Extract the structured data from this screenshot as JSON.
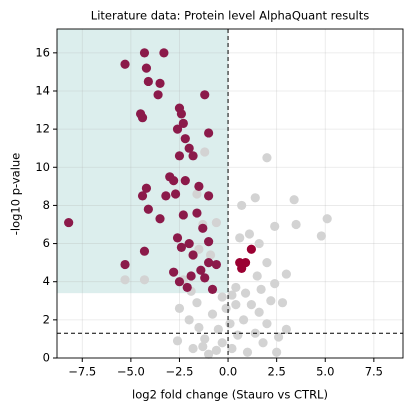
{
  "chart_data": {
    "type": "scatter",
    "title": "Literature data: Protein level AlphaQuant results",
    "x_label": "log2 fold change (Stauro vs CTRL)",
    "y_label": "-log10 p-value",
    "xlim": [
      -8.8,
      9.0
    ],
    "ylim": [
      0,
      17.25
    ],
    "xticks": [
      {
        "value": -7.5,
        "label": "−7.5"
      },
      {
        "value": -5,
        "label": "−5.0"
      },
      {
        "value": -2.5,
        "label": "−2.5"
      },
      {
        "value": 0,
        "label": "0.0"
      },
      2.5,
      {
        "value": 5,
        "label": "5.0"
      },
      7.5
    ],
    "yticks": [
      0,
      2,
      4,
      6,
      8,
      10,
      12,
      14,
      16
    ],
    "grid": true,
    "highlight_region": {
      "color": "#dceeed",
      "x": [
        -8.8,
        0
      ],
      "y": [
        3.4,
        17.25
      ]
    },
    "vlines": [
      0
    ],
    "hlines": [
      1.3
    ],
    "series": [
      {
        "color": "#d3d3d3",
        "x": [
          2.0,
          1.4,
          0.7,
          3.4,
          5.1,
          3.5,
          2.4,
          4.8,
          1.6,
          0.6,
          1.1,
          2.0,
          1.5,
          3.0,
          2.4,
          0.4,
          -5.3,
          -4.3,
          -1.2,
          -1.6,
          -1.3,
          -0.6,
          -1.5,
          -0.9,
          -2.3,
          -1.6,
          -2.5,
          -2.0,
          -1.5,
          -1.2,
          -0.8,
          -0.5,
          -0.3,
          -1.8,
          -1.0,
          0.2,
          0.5,
          0.8,
          1.2,
          1.6,
          2.0,
          1.8,
          2.2,
          2.8,
          3.0,
          1.0,
          0.4,
          0.2,
          -0.3,
          -0.6,
          1.4,
          0.9,
          -2.6,
          2.5,
          -1.9,
          0.1,
          -0.1,
          1.7,
          2.6,
          -1.3
        ],
        "values": [
          10.5,
          8.4,
          8.0,
          8.3,
          7.3,
          7.0,
          6.9,
          6.4,
          6.0,
          6.3,
          6.5,
          5.0,
          4.3,
          4.4,
          3.9,
          3.7,
          4.1,
          4.1,
          10.8,
          8.6,
          7.0,
          7.1,
          5.7,
          5.4,
          4.1,
          2.9,
          2.6,
          2.0,
          1.6,
          1.0,
          2.3,
          1.5,
          0.8,
          0.5,
          0.2,
          0.5,
          1.2,
          2.0,
          2.8,
          2.4,
          1.8,
          0.8,
          3.0,
          2.9,
          1.5,
          0.3,
          2.8,
          3.3,
          3.2,
          0.4,
          1.3,
          3.4,
          0.9,
          0.3,
          3.5,
          1.8,
          2.6,
          3.6,
          1.1,
          0.6
        ]
      },
      {
        "color": "#8b1a4a",
        "x": [
          -5.3,
          -4.3,
          -3.3,
          -4.2,
          -4.1,
          -3.5,
          -3.6,
          -1.2,
          -4.5,
          -4.4,
          -2.5,
          -2.4,
          -2.3,
          -2.6,
          -1.0,
          -2.2,
          -2.0,
          -2.5,
          -1.8,
          -3.0,
          -2.8,
          -1.5,
          -2.2,
          -4.2,
          -4.4,
          -3.2,
          -2.7,
          -1.0,
          -4.1,
          -3.5,
          -2.3,
          -1.6,
          -8.2,
          -1.3,
          -2.6,
          -2.0,
          -1.0,
          -2.4,
          -4.3,
          -5.3,
          -2.8,
          -1.4,
          -1.9,
          -2.5,
          -1.0,
          -1.8,
          -0.6,
          -1.2,
          -2.1,
          -0.8
        ],
        "values": [
          15.4,
          16.0,
          16.0,
          15.2,
          14.5,
          14.4,
          13.8,
          13.8,
          12.8,
          12.6,
          13.1,
          12.8,
          12.3,
          12.0,
          11.8,
          11.5,
          11.0,
          10.6,
          10.6,
          9.5,
          9.3,
          9.0,
          9.3,
          8.9,
          8.5,
          8.5,
          8.6,
          8.5,
          7.8,
          7.3,
          7.5,
          7.6,
          7.1,
          6.8,
          6.3,
          6.0,
          6.1,
          5.8,
          5.6,
          4.9,
          4.5,
          4.6,
          4.3,
          4.0,
          5.0,
          5.4,
          4.9,
          4.2,
          3.7,
          3.6
        ]
      },
      {
        "color": "#9b0032",
        "x": [
          0.6,
          0.9,
          1.2,
          0.7
        ],
        "values": [
          5.0,
          5.0,
          5.7,
          4.7
        ]
      }
    ]
  }
}
